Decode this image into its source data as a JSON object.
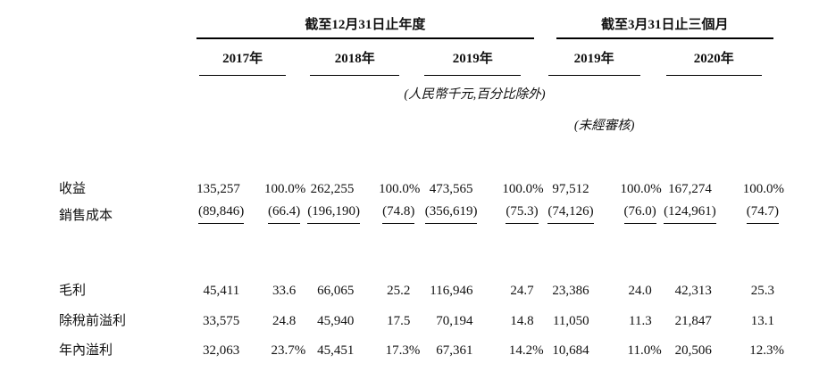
{
  "table": {
    "groups": [
      {
        "title": "截至12月31日止年度",
        "years": [
          "2017年",
          "2018年",
          "2019年"
        ]
      },
      {
        "title": "截至3月31日止三個月",
        "years": [
          "2019年",
          "2020年"
        ]
      }
    ],
    "notes": {
      "units": "(人民幣千元,百分比除外)",
      "unaudited": "(未經審核)"
    },
    "rows": [
      {
        "label": "收益",
        "values": [
          "135,257",
          "100.0%",
          "262,255",
          "100.0%",
          "473,565",
          "100.0%",
          "97,512",
          "100.0%",
          "167,274",
          "100.0%"
        ]
      },
      {
        "label": "銷售成本",
        "values": [
          "(89,846)",
          "(66.4)",
          "(196,190)",
          "(74.8)",
          "(356,619)",
          "(75.3)",
          "(74,126)",
          "(76.0)",
          "(124,961)",
          "(74.7)"
        ]
      },
      {
        "label": "毛利",
        "values": [
          "45,411",
          "33.6",
          "66,065",
          "25.2",
          "116,946",
          "24.7",
          "23,386",
          "24.0",
          "42,313",
          "25.3"
        ]
      },
      {
        "label": "除稅前溢利",
        "values": [
          "33,575",
          "24.8",
          "45,940",
          "17.5",
          "70,194",
          "14.8",
          "11,050",
          "11.3",
          "21,847",
          "13.1"
        ]
      },
      {
        "label": "年內溢利",
        "values": [
          "32,063",
          "23.7%",
          "45,451",
          "17.3%",
          "67,361",
          "14.2%",
          "10,684",
          "11.0%",
          "20,506",
          "12.3%"
        ]
      }
    ],
    "colors": {
      "text": "#111111",
      "rule": "#000000",
      "background": "#ffffff"
    }
  }
}
